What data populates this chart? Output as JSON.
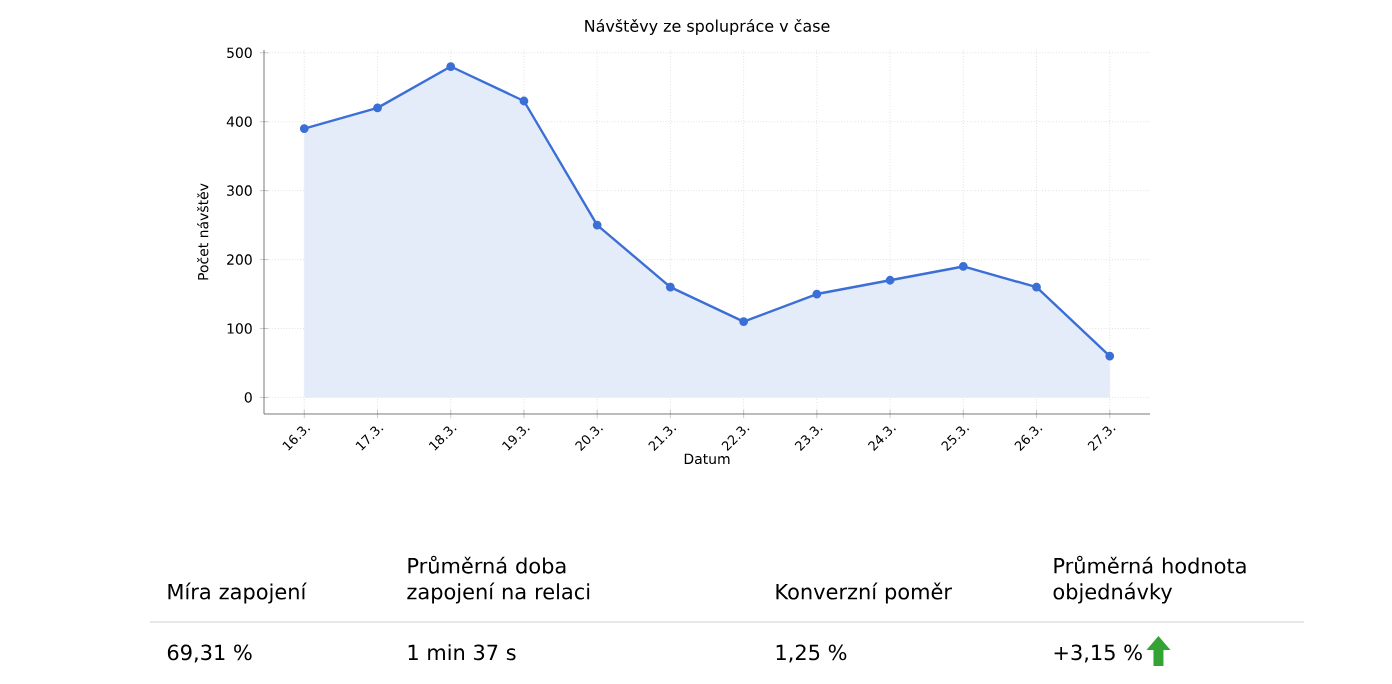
{
  "chart_data": {
    "type": "area",
    "title": "Návštěvy ze spolupráce v čase",
    "xlabel": "Datum",
    "ylabel": "Počet návštěv",
    "categories": [
      "16.3.",
      "17.3.",
      "18.3.",
      "19.3.",
      "20.3.",
      "21.3.",
      "22.3.",
      "23.3.",
      "24.3.",
      "25.3.",
      "26.3.",
      "27.3."
    ],
    "values": [
      390,
      420,
      480,
      430,
      250,
      160,
      110,
      150,
      170,
      190,
      160,
      60
    ],
    "color": "#3b6fd6",
    "ylim": [
      -24,
      504
    ],
    "yticks": [
      0,
      100,
      200,
      300,
      400,
      500
    ],
    "grid": true,
    "marker": "circle",
    "line_style": "solid",
    "annotations": [
      "Míra zapojení",
      "Průměrná doba zapojení na relaci",
      "Konverzní poměr",
      "Průměrná hodnota objednávky",
      "69,31 %",
      "1 min 37 s",
      "1,25 %",
      "+3,15 %"
    ]
  }
}
